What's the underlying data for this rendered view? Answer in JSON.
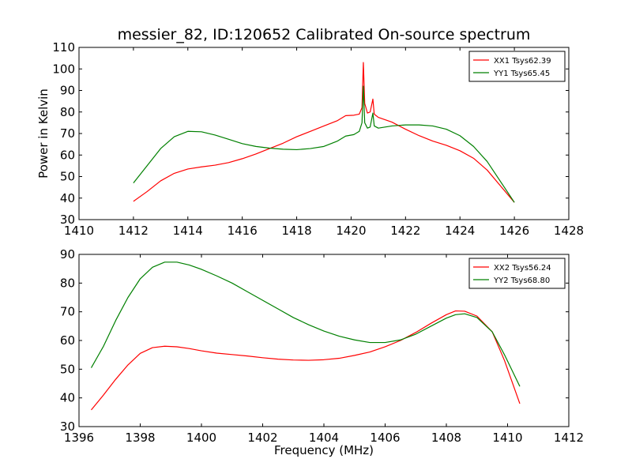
{
  "chart_data": [
    {
      "type": "line",
      "title": "messier_82, ID:120652 Calibrated On-source spectrum",
      "xlabel": "",
      "ylabel": "Power in Kelvin",
      "xlim": [
        1410,
        1428
      ],
      "ylim": [
        30,
        110
      ],
      "xticks": [
        1410,
        1412,
        1414,
        1416,
        1418,
        1420,
        1422,
        1424,
        1426,
        1428
      ],
      "yticks": [
        30,
        40,
        50,
        60,
        70,
        80,
        90,
        100,
        110
      ],
      "legend_position": "top-right",
      "grid": false,
      "series": [
        {
          "name": "XX1 Tsys62.39",
          "color": "#ff0000",
          "points": [
            [
              1412,
              38.5
            ],
            [
              1412.5,
              43
            ],
            [
              1413,
              48
            ],
            [
              1413.5,
              51.5
            ],
            [
              1414,
              53.5
            ],
            [
              1414.5,
              54.5
            ],
            [
              1415,
              55.3
            ],
            [
              1415.5,
              56.5
            ],
            [
              1416,
              58.3
            ],
            [
              1416.5,
              60.5
            ],
            [
              1417,
              63
            ],
            [
              1417.5,
              65.5
            ],
            [
              1418,
              68.5
            ],
            [
              1418.5,
              71
            ],
            [
              1419,
              73.5
            ],
            [
              1419.5,
              76
            ],
            [
              1419.8,
              78.3
            ],
            [
              1420.1,
              78.5
            ],
            [
              1420.3,
              79
            ],
            [
              1420.4,
              82
            ],
            [
              1420.45,
              103
            ],
            [
              1420.5,
              84
            ],
            [
              1420.6,
              79.5
            ],
            [
              1420.7,
              80
            ],
            [
              1420.8,
              86
            ],
            [
              1420.85,
              79
            ],
            [
              1421,
              77.5
            ],
            [
              1421.5,
              75.3
            ],
            [
              1422,
              72
            ],
            [
              1422.5,
              69
            ],
            [
              1423,
              66.5
            ],
            [
              1423.5,
              64.5
            ],
            [
              1424,
              62
            ],
            [
              1424.5,
              58.5
            ],
            [
              1425,
              53
            ],
            [
              1425.5,
              45.5
            ],
            [
              1426,
              38
            ]
          ]
        },
        {
          "name": "YY1 Tsys65.45",
          "color": "#008000",
          "points": [
            [
              1412,
              47
            ],
            [
              1412.5,
              55
            ],
            [
              1413,
              63
            ],
            [
              1413.5,
              68.5
            ],
            [
              1414,
              71
            ],
            [
              1414.5,
              70.8
            ],
            [
              1415,
              69.3
            ],
            [
              1415.5,
              67.3
            ],
            [
              1416,
              65.3
            ],
            [
              1416.5,
              64
            ],
            [
              1417,
              63.2
            ],
            [
              1417.5,
              62.7
            ],
            [
              1418,
              62.5
            ],
            [
              1418.5,
              63
            ],
            [
              1419,
              64
            ],
            [
              1419.5,
              66.5
            ],
            [
              1419.8,
              68.8
            ],
            [
              1420.1,
              69.5
            ],
            [
              1420.3,
              71
            ],
            [
              1420.4,
              75
            ],
            [
              1420.45,
              92
            ],
            [
              1420.5,
              75
            ],
            [
              1420.6,
              72.5
            ],
            [
              1420.7,
              73
            ],
            [
              1420.8,
              79.5
            ],
            [
              1420.85,
              73.5
            ],
            [
              1421,
              72.5
            ],
            [
              1421.5,
              73.5
            ],
            [
              1422,
              74
            ],
            [
              1422.5,
              74
            ],
            [
              1423,
              73.5
            ],
            [
              1423.5,
              72
            ],
            [
              1424,
              69
            ],
            [
              1424.5,
              64
            ],
            [
              1425,
              57
            ],
            [
              1425.5,
              47.5
            ],
            [
              1426,
              38
            ]
          ]
        }
      ]
    },
    {
      "type": "line",
      "title": "",
      "xlabel": "Frequency (MHz)",
      "ylabel": "",
      "xlim": [
        1396,
        1412
      ],
      "ylim": [
        30,
        90
      ],
      "xticks": [
        1396,
        1398,
        1400,
        1402,
        1404,
        1406,
        1408,
        1410,
        1412
      ],
      "yticks": [
        30,
        40,
        50,
        60,
        70,
        80,
        90
      ],
      "legend_position": "top-right",
      "grid": false,
      "series": [
        {
          "name": "XX2 Tsys56.24",
          "color": "#ff0000",
          "points": [
            [
              1396.4,
              35.8
            ],
            [
              1396.8,
              41
            ],
            [
              1397.2,
              46.5
            ],
            [
              1397.6,
              51.5
            ],
            [
              1398,
              55.5
            ],
            [
              1398.4,
              57.5
            ],
            [
              1398.8,
              58
            ],
            [
              1399.2,
              57.8
            ],
            [
              1399.6,
              57.2
            ],
            [
              1400,
              56.4
            ],
            [
              1400.5,
              55.6
            ],
            [
              1401,
              55.1
            ],
            [
              1401.5,
              54.6
            ],
            [
              1402,
              54
            ],
            [
              1402.5,
              53.5
            ],
            [
              1403,
              53.2
            ],
            [
              1403.5,
              53.1
            ],
            [
              1404,
              53.3
            ],
            [
              1404.5,
              53.8
            ],
            [
              1405,
              54.8
            ],
            [
              1405.5,
              56
            ],
            [
              1406,
              57.8
            ],
            [
              1406.5,
              60
            ],
            [
              1407,
              62.8
            ],
            [
              1407.5,
              66
            ],
            [
              1408,
              69
            ],
            [
              1408.3,
              70.3
            ],
            [
              1408.6,
              70.2
            ],
            [
              1409,
              68.5
            ],
            [
              1409.5,
              63
            ],
            [
              1409.9,
              53
            ],
            [
              1410.4,
              38
            ]
          ]
        },
        {
          "name": "YY2 Tsys68.80",
          "color": "#008000",
          "points": [
            [
              1396.4,
              50.5
            ],
            [
              1396.8,
              58
            ],
            [
              1397.2,
              67
            ],
            [
              1397.6,
              75
            ],
            [
              1398,
              81.5
            ],
            [
              1398.4,
              85.5
            ],
            [
              1398.8,
              87.3
            ],
            [
              1399.2,
              87.3
            ],
            [
              1399.6,
              86.3
            ],
            [
              1400,
              84.8
            ],
            [
              1400.5,
              82.5
            ],
            [
              1401,
              80
            ],
            [
              1401.5,
              77
            ],
            [
              1402,
              74
            ],
            [
              1402.5,
              71
            ],
            [
              1403,
              68
            ],
            [
              1403.5,
              65.5
            ],
            [
              1404,
              63.3
            ],
            [
              1404.5,
              61.5
            ],
            [
              1405,
              60.2
            ],
            [
              1405.5,
              59.3
            ],
            [
              1406,
              59.3
            ],
            [
              1406.5,
              60.2
            ],
            [
              1407,
              62.2
            ],
            [
              1407.5,
              65
            ],
            [
              1408,
              67.8
            ],
            [
              1408.3,
              69
            ],
            [
              1408.6,
              69.3
            ],
            [
              1409,
              68
            ],
            [
              1409.5,
              63
            ],
            [
              1409.9,
              55
            ],
            [
              1410.4,
              44
            ]
          ]
        }
      ]
    }
  ]
}
